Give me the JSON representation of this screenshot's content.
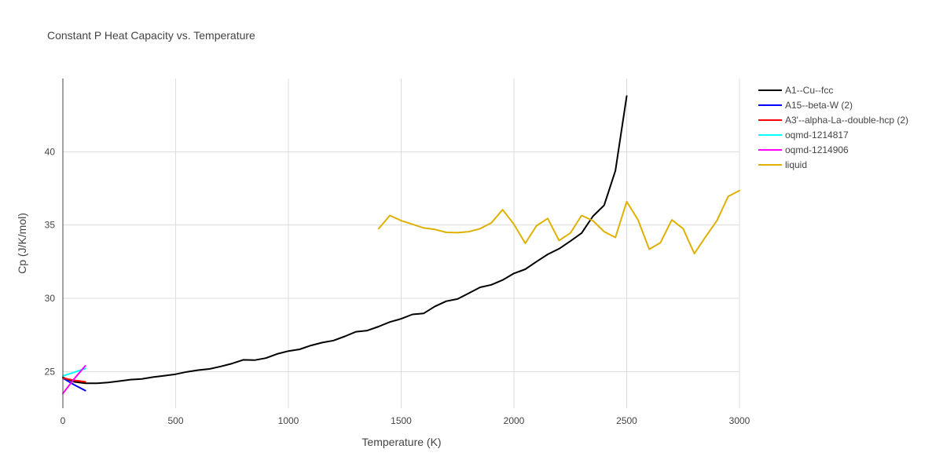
{
  "chart_data": {
    "type": "line",
    "title": "Constant P Heat Capacity vs. Temperature",
    "xlabel": "Temperature (K)",
    "ylabel": "Cp (J/K/mol)",
    "xlim": [
      0,
      3000
    ],
    "ylim": [
      22.5,
      45
    ],
    "xticks": [
      0,
      500,
      1000,
      1500,
      2000,
      2500,
      3000
    ],
    "yticks": [
      25,
      30,
      35,
      40
    ],
    "grid": true,
    "legend_position": "top-right",
    "series": [
      {
        "name": "A1--Cu--fcc",
        "color": "#000000",
        "x": [
          0,
          50,
          100,
          150,
          200,
          250,
          300,
          350,
          400,
          450,
          500,
          550,
          600,
          650,
          700,
          750,
          800,
          850,
          900,
          950,
          1000,
          1050,
          1100,
          1150,
          1200,
          1250,
          1300,
          1350,
          1400,
          1450,
          1500,
          1550,
          1600,
          1650,
          1700,
          1750,
          1800,
          1850,
          1900,
          1950,
          2000,
          2050,
          2100,
          2150,
          2200,
          2250,
          2300,
          2350,
          2400,
          2450,
          2500
        ],
        "y": [
          24.6,
          24.3,
          24.2,
          24.2,
          24.25,
          24.35,
          24.45,
          24.5,
          24.62,
          24.72,
          24.82,
          24.98,
          25.1,
          25.18,
          25.35,
          25.55,
          25.8,
          25.78,
          25.92,
          26.2,
          26.4,
          26.52,
          26.78,
          26.98,
          27.12,
          27.4,
          27.72,
          27.8,
          28.07,
          28.38,
          28.6,
          28.9,
          28.97,
          29.45,
          29.8,
          29.95,
          30.35,
          30.75,
          30.92,
          31.25,
          31.7,
          31.98,
          32.5,
          33.0,
          33.38,
          33.9,
          34.45,
          35.6,
          36.35,
          38.7,
          43.8
        ]
      },
      {
        "name": "A15--beta-W (2)",
        "color": "#0000ff",
        "x": [
          0,
          50,
          100
        ],
        "y": [
          24.55,
          24.1,
          23.7
        ]
      },
      {
        "name": "A3'--alpha-La--double-hcp (2)",
        "color": "#ff0000",
        "x": [
          0,
          50,
          100
        ],
        "y": [
          24.55,
          24.4,
          24.3
        ]
      },
      {
        "name": "oqmd-1214817",
        "color": "#00ffff",
        "x": [
          0,
          50,
          100
        ],
        "y": [
          24.7,
          24.95,
          25.2
        ]
      },
      {
        "name": "oqmd-1214906",
        "color": "#ff00ff",
        "x": [
          0,
          50,
          100
        ],
        "y": [
          23.5,
          24.5,
          25.4
        ]
      },
      {
        "name": "liquid",
        "color": "#e0b000",
        "x": [
          1400,
          1450,
          1500,
          1550,
          1600,
          1650,
          1700,
          1750,
          1800,
          1850,
          1900,
          1950,
          2000,
          2050,
          2100,
          2150,
          2200,
          2250,
          2300,
          2350,
          2400,
          2450,
          2500,
          2550,
          2600,
          2650,
          2700,
          2750,
          2800,
          2850,
          2900,
          2950,
          3000
        ],
        "y": [
          34.75,
          35.65,
          35.3,
          35.05,
          34.8,
          34.7,
          34.5,
          34.48,
          34.55,
          34.75,
          35.15,
          36.05,
          35.05,
          33.75,
          34.95,
          35.45,
          33.95,
          34.45,
          35.65,
          35.3,
          34.55,
          34.15,
          36.6,
          35.35,
          33.35,
          33.8,
          35.35,
          34.75,
          33.05,
          34.2,
          35.3,
          36.95,
          37.35
        ]
      }
    ]
  }
}
